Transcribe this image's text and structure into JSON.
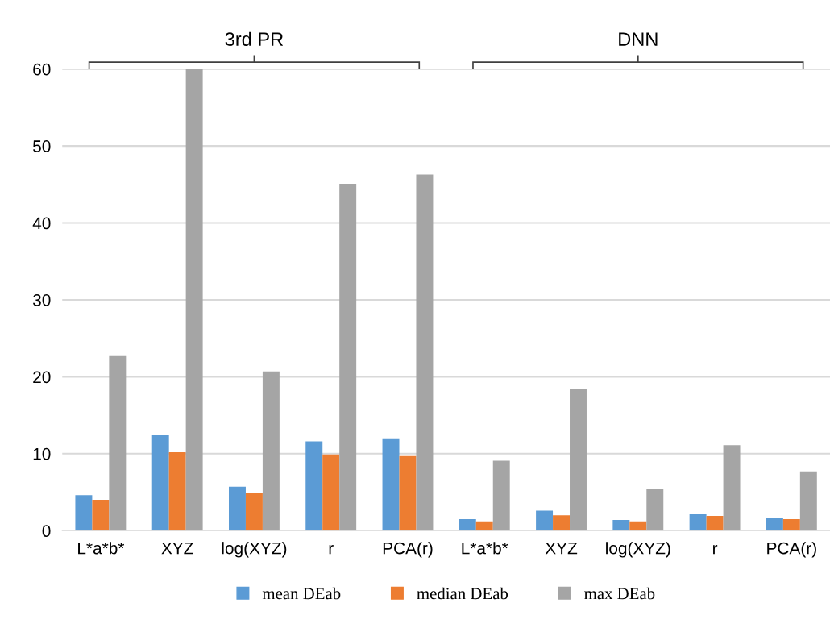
{
  "chart_data": {
    "type": "bar",
    "categories": [
      "L*a*b*",
      "XYZ",
      "log(XYZ)",
      "r",
      "PCA(r)",
      "L*a*b*",
      "XYZ",
      "log(XYZ)",
      "r",
      "PCA(r)"
    ],
    "series": [
      {
        "name": "mean DEab",
        "color": "#5b9bd5",
        "values": [
          4.6,
          12.4,
          5.7,
          11.6,
          12.0,
          1.5,
          2.6,
          1.4,
          2.2,
          1.7
        ]
      },
      {
        "name": "median DEab",
        "color": "#ed7d31",
        "values": [
          4.0,
          10.2,
          4.9,
          9.9,
          9.7,
          1.2,
          2.0,
          1.2,
          1.9,
          1.5
        ]
      },
      {
        "name": "max DEab",
        "color": "#a5a5a5",
        "values": [
          22.8,
          60,
          20.7,
          45.1,
          46.3,
          9.1,
          18.4,
          5.4,
          11.1,
          7.7
        ]
      }
    ],
    "ylim": [
      0,
      60
    ],
    "yticks": [
      0,
      10,
      20,
      30,
      40,
      50,
      60
    ],
    "grid": "y",
    "legend": "bottom",
    "annotations": [
      "3rd PR",
      "DNN"
    ]
  }
}
